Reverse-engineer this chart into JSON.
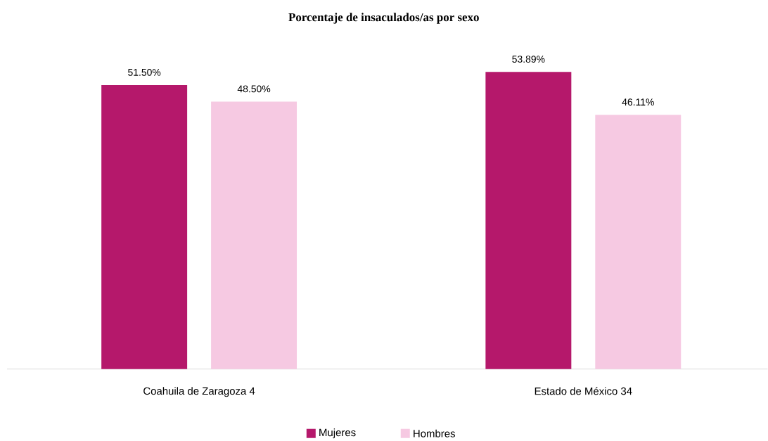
{
  "chart_data": {
    "type": "bar",
    "title": "Porcentaje de insaculados/as por sexo",
    "categories": [
      "Coahuila de Zaragoza 4",
      "Estado de México 34"
    ],
    "series": [
      {
        "name": "Mujeres",
        "color": "#b5186b",
        "values": [
          51.5,
          53.89
        ],
        "value_labels": [
          "51.50%",
          "53.89%"
        ]
      },
      {
        "name": "Hombres",
        "color": "#f6c9e2",
        "values": [
          48.5,
          46.11
        ],
        "value_labels": [
          "48.50%",
          "46.11%"
        ]
      }
    ],
    "legend": "bottom"
  }
}
